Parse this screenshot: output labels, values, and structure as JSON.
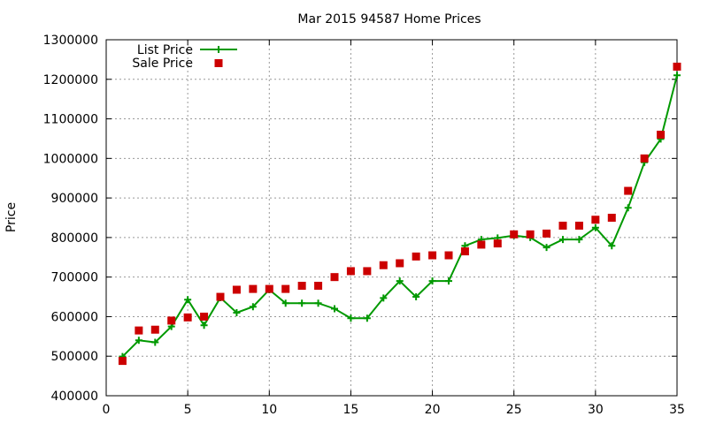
{
  "chart_data": {
    "type": "line",
    "title": "Mar 2015 94587 Home Prices",
    "xlabel": "",
    "ylabel": "Price",
    "xlim": [
      0,
      35
    ],
    "ylim": [
      400000,
      1300000
    ],
    "xticks": [
      0,
      5,
      10,
      15,
      20,
      25,
      30,
      35
    ],
    "yticks": [
      400000,
      500000,
      600000,
      700000,
      800000,
      900000,
      1000000,
      1100000,
      1200000,
      1300000
    ],
    "grid": true,
    "legend_position": "top-left",
    "x": [
      1,
      2,
      3,
      4,
      5,
      6,
      7,
      8,
      9,
      10,
      11,
      12,
      13,
      14,
      15,
      16,
      17,
      18,
      19,
      20,
      21,
      22,
      23,
      24,
      25,
      26,
      27,
      28,
      29,
      30,
      31,
      32,
      33,
      34,
      35
    ],
    "series": [
      {
        "name": "List Price",
        "style": "linespoints",
        "marker": "plus",
        "color": "#009900",
        "values": [
          499000,
          540000,
          535000,
          575000,
          643000,
          578000,
          648000,
          610000,
          625000,
          668000,
          634000,
          634000,
          634000,
          620000,
          596000,
          596000,
          647000,
          690000,
          650000,
          690000,
          690000,
          779000,
          795000,
          799000,
          805000,
          800000,
          775000,
          795000,
          795000,
          825000,
          779000,
          875000,
          990000,
          1049000,
          1210000
        ]
      },
      {
        "name": "Sale Price",
        "style": "points",
        "marker": "square",
        "color": "#cc0000",
        "values": [
          488000,
          565000,
          567000,
          590000,
          598000,
          600000,
          650000,
          668000,
          670000,
          670000,
          670000,
          678000,
          678000,
          700000,
          715000,
          715000,
          730000,
          735000,
          752000,
          755000,
          755000,
          765000,
          782000,
          785000,
          808000,
          808000,
          810000,
          830000,
          830000,
          845000,
          850000,
          918000,
          1000000,
          1060000,
          1232000
        ]
      }
    ]
  }
}
